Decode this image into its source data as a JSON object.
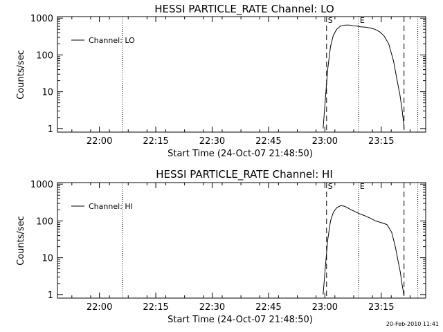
{
  "timestamp": "20-Feb-2010 11:41",
  "chart_data": [
    {
      "type": "line",
      "title": "HESSI PARTICLE_RATE Channel: LO",
      "xlabel": "Start Time (24-Oct-07 21:48:50)",
      "ylabel": "Counts/sec",
      "yscale": "log",
      "xlim_minutes_after_start": [
        0,
        98
      ],
      "ylim": [
        0.8,
        1100
      ],
      "x_ticks": [
        "22:00",
        "22:15",
        "22:30",
        "22:45",
        "23:00",
        "23:15"
      ],
      "y_ticks": [
        "1",
        "10",
        "100",
        "1000"
      ],
      "legend": {
        "entries": [
          "Channel: LO"
        ],
        "position": "top-left"
      },
      "markers": [
        {
          "label": "",
          "x": "22:06:04",
          "style": "dotted"
        },
        {
          "label": "S",
          "x": "23:00:27",
          "style": "dashed"
        },
        {
          "label": "E",
          "x": "23:08:57",
          "style": "dotted"
        },
        {
          "label": "",
          "x": "23:21:04",
          "style": "dashed"
        },
        {
          "label": "",
          "x": "23:24:44",
          "style": "dotted"
        }
      ],
      "series": [
        {
          "name": "Channel: LO",
          "x": [
            "22:59:32",
            "23:00:10",
            "23:00:45",
            "23:01:30",
            "23:02:15",
            "23:03:10",
            "23:04:15",
            "23:05:30",
            "23:06:30",
            "23:07:30",
            "23:08:30",
            "23:09:30",
            "23:10:45",
            "23:12:00",
            "23:13:15",
            "23:14:30",
            "23:15:45",
            "23:17:00",
            "23:18:15",
            "23:19:15",
            "23:20:00",
            "23:20:35",
            "23:20:55",
            "23:21:05"
          ],
          "y": [
            1,
            7,
            40,
            170,
            340,
            500,
            620,
            650,
            650,
            620,
            610,
            580,
            570,
            540,
            500,
            430,
            330,
            200,
            70,
            20,
            8,
            3,
            1.5,
            1
          ]
        }
      ]
    },
    {
      "type": "line",
      "title": "HESSI PARTICLE_RATE Channel: HI",
      "xlabel": "Start Time (24-Oct-07 21:48:50)",
      "ylabel": "Counts/sec",
      "yscale": "log",
      "xlim_minutes_after_start": [
        0,
        98
      ],
      "ylim": [
        0.8,
        1100
      ],
      "x_ticks": [
        "22:00",
        "22:15",
        "22:30",
        "22:45",
        "23:00",
        "23:15"
      ],
      "y_ticks": [
        "1",
        "10",
        "100",
        "1000"
      ],
      "legend": {
        "entries": [
          "Channel: HI"
        ],
        "position": "top-left"
      },
      "markers": [
        {
          "label": "",
          "x": "22:06:04",
          "style": "dotted"
        },
        {
          "label": "S",
          "x": "23:00:27",
          "style": "dashed"
        },
        {
          "label": "E",
          "x": "23:08:57",
          "style": "dotted"
        },
        {
          "label": "",
          "x": "23:21:04",
          "style": "dashed"
        },
        {
          "label": "",
          "x": "23:24:44",
          "style": "dotted"
        }
      ],
      "series": [
        {
          "name": "Channel: HI",
          "x": [
            "22:59:32",
            "23:00:10",
            "23:00:45",
            "23:01:30",
            "23:02:15",
            "23:03:10",
            "23:04:15",
            "23:05:15",
            "23:06:00",
            "23:07:00",
            "23:08:00",
            "23:09:00",
            "23:10:30",
            "23:12:00",
            "23:13:30",
            "23:15:00",
            "23:16:30",
            "23:17:45",
            "23:18:45",
            "23:19:30",
            "23:20:05",
            "23:20:30",
            "23:20:50",
            "23:21:00"
          ],
          "y": [
            1,
            6,
            30,
            100,
            170,
            230,
            260,
            250,
            230,
            200,
            180,
            160,
            140,
            120,
            100,
            90,
            80,
            50,
            20,
            8,
            4,
            2,
            1.3,
            1
          ]
        }
      ]
    }
  ]
}
